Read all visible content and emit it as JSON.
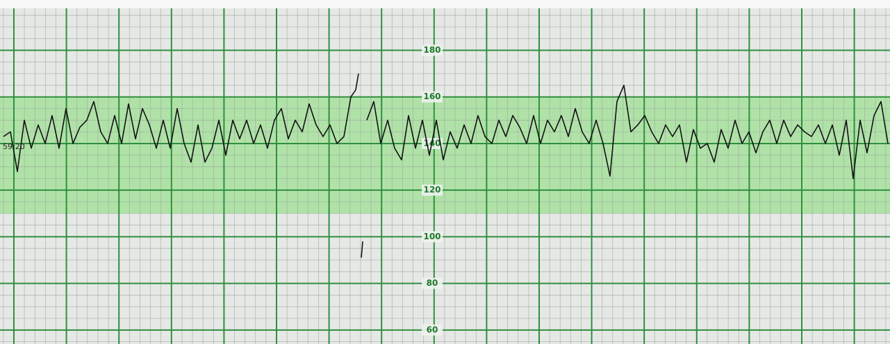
{
  "chart_data": {
    "type": "line",
    "annotation": "59:20",
    "xlim": [
      0,
      1281
    ],
    "ylim": [
      54,
      198
    ],
    "yticks": [
      60,
      80,
      100,
      120,
      140,
      160,
      180
    ],
    "band": [
      110,
      160
    ],
    "band_color": "#a6e09c",
    "grid": true,
    "grid_color": "#2f8f3e",
    "series": [
      {
        "color": "#111111",
        "x": [
          5,
          15,
          25,
          35,
          45,
          55,
          65,
          75,
          85,
          95,
          105,
          115,
          125,
          135,
          145,
          155,
          165,
          175,
          185,
          195,
          205,
          215,
          225,
          235,
          245,
          255,
          265,
          275,
          285,
          295,
          305,
          315,
          325,
          335,
          345,
          355,
          365,
          375,
          385,
          395,
          405,
          415,
          425,
          435,
          445,
          455,
          465,
          475,
          485,
          495,
          505,
          512,
          516,
          518,
          520,
          522,
          524,
          528,
          538,
          548,
          558,
          568,
          578,
          588,
          598,
          608,
          618,
          628,
          638,
          648,
          658,
          668,
          678,
          688,
          698,
          708,
          718,
          728,
          738,
          748,
          758,
          768,
          778,
          788,
          798,
          808,
          818,
          828,
          838,
          848,
          858,
          868,
          878,
          888,
          898,
          908,
          918,
          928,
          938,
          948,
          958,
          968,
          978,
          988,
          998,
          1008,
          1018,
          1028,
          1038,
          1048,
          1058,
          1068,
          1078,
          1088,
          1098,
          1108,
          1118,
          1128,
          1138,
          1148,
          1158,
          1168,
          1178,
          1188,
          1198,
          1208,
          1218,
          1228,
          1238,
          1248,
          1258,
          1268,
          1278
        ],
        "values": [
          143,
          145,
          128,
          150,
          138,
          148,
          140,
          152,
          138,
          155,
          140,
          147,
          150,
          158,
          145,
          140,
          152,
          140,
          157,
          142,
          155,
          148,
          138,
          150,
          138,
          155,
          140,
          132,
          148,
          132,
          138,
          150,
          135,
          150,
          142,
          150,
          140,
          148,
          138,
          150,
          155,
          142,
          150,
          145,
          157,
          148,
          143,
          148,
          140,
          143,
          160,
          163,
          170,
          null,
          91,
          98,
          null,
          150,
          158,
          140,
          150,
          138,
          133,
          152,
          138,
          150,
          135,
          150,
          133,
          145,
          138,
          148,
          140,
          152,
          143,
          140,
          150,
          143,
          152,
          147,
          140,
          152,
          140,
          150,
          145,
          152,
          143,
          155,
          145,
          140,
          150,
          140,
          126,
          158,
          165,
          145,
          148,
          152,
          145,
          140,
          148,
          143,
          148,
          132,
          146,
          138,
          140,
          132,
          146,
          138,
          150,
          140,
          145,
          136,
          145,
          150,
          140,
          150,
          143,
          148,
          145,
          143,
          148,
          140,
          148,
          135,
          150,
          125,
          150,
          136,
          152,
          158,
          140
        ]
      }
    ]
  }
}
